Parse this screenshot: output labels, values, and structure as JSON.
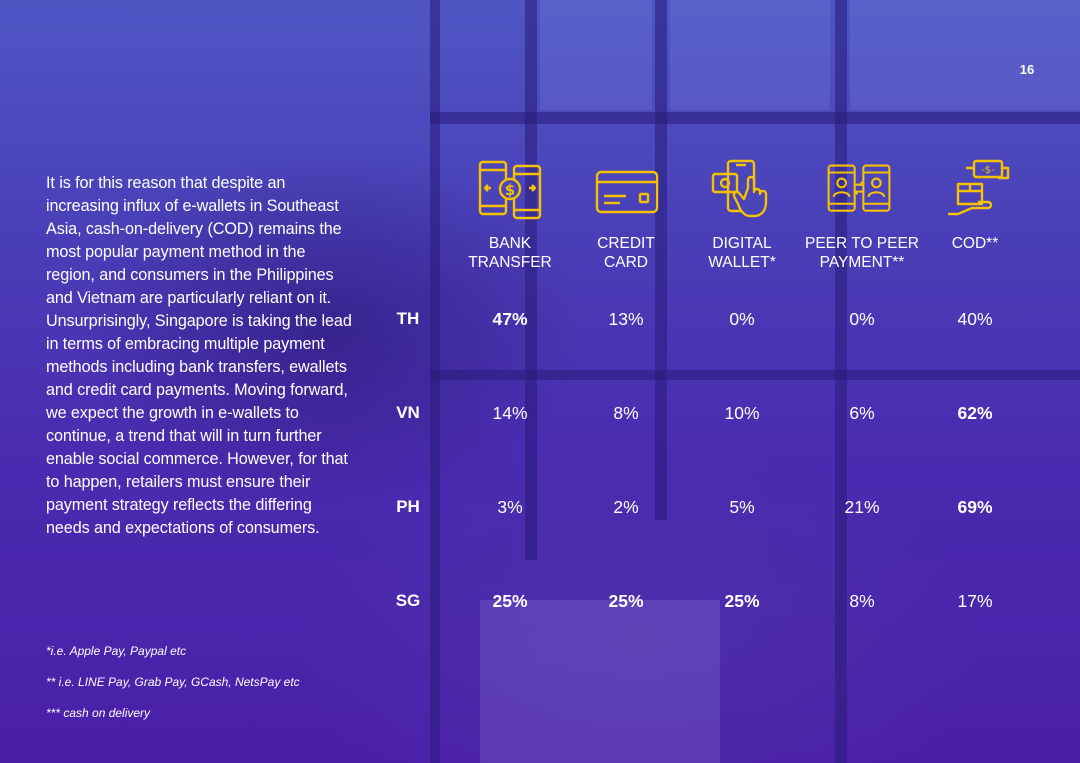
{
  "page_number": "16",
  "body_text": "It is for this reason that despite an increasing influx of e-wallets in Southeast Asia, cash-on-delivery (COD) remains the most popular payment method in the region, and consumers in the Philippines and Vietnam are particularly reliant on it. Unsurprisingly, Singapore is taking the lead in terms of embracing multiple payment methods including bank transfers, ewallets and credit card payments. Moving forward, we expect the growth in e-wallets to continue, a trend that will in turn further enable social commerce. However, for that to happen, retailers must ensure their payment strategy reflects the differing needs and expectations of consumers.",
  "footnotes": [
    "*i.e. Apple Pay, Paypal etc",
    "** i.e. LINE Pay, Grab Pay, GCash, NetsPay etc",
    "*** cash on delivery"
  ],
  "icon_color": "#f5c200",
  "columns": [
    {
      "label_line1": "BANK",
      "label_line2": "TRANSFER",
      "icon": "bank-transfer-icon"
    },
    {
      "label_line1": "CREDIT",
      "label_line2": "CARD",
      "icon": "credit-card-icon"
    },
    {
      "label_line1": "DIGITAL",
      "label_line2": "WALLET*",
      "icon": "digital-wallet-icon"
    },
    {
      "label_line1": "PEER TO PEER",
      "label_line2": "PAYMENT**",
      "icon": "peer-to-peer-icon"
    },
    {
      "label_line1": "COD**",
      "label_line2": "",
      "icon": "cash-on-delivery-icon"
    }
  ],
  "rows": [
    {
      "label": "TH",
      "values": [
        "47%",
        "13%",
        "0%",
        "0%",
        "40%"
      ]
    },
    {
      "label": "VN",
      "values": [
        "14%",
        "8%",
        "10%",
        "6%",
        "62%"
      ]
    },
    {
      "label": "PH",
      "values": [
        "3%",
        "2%",
        "5%",
        "21%",
        "69%"
      ]
    },
    {
      "label": "SG",
      "values": [
        "25%",
        "25%",
        "25%",
        "8%",
        "17%"
      ]
    }
  ]
}
